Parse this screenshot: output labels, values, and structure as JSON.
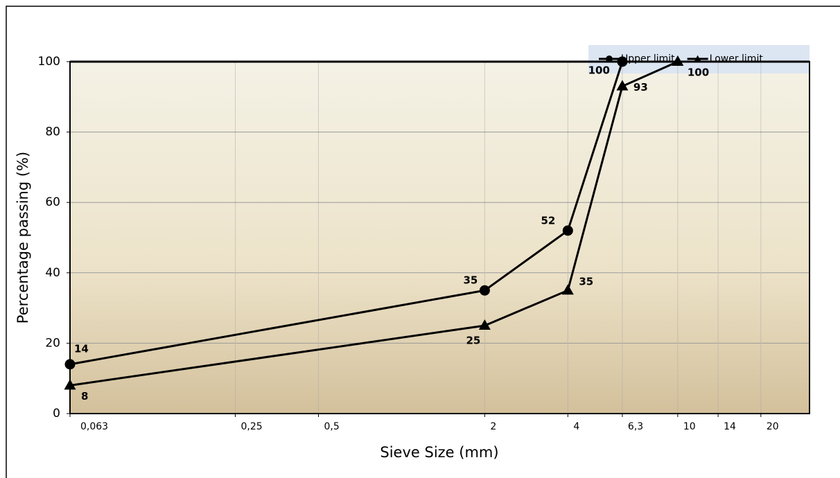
{
  "chart_data": {
    "type": "line",
    "xlabel": "Sieve Size (mm)",
    "ylabel": "Percentage passing (%)",
    "xscale": "log",
    "xlim": [
      0.063,
      30
    ],
    "ylim": [
      0,
      100
    ],
    "xticks": [
      {
        "value": 0.063,
        "label": "0,063"
      },
      {
        "value": 0.25,
        "label": "0,25"
      },
      {
        "value": 0.5,
        "label": "0,5"
      },
      2,
      4,
      {
        "value": 6.3,
        "label": "6,3"
      },
      10,
      14,
      20
    ],
    "yticks": [
      0,
      20,
      40,
      60,
      80,
      100
    ],
    "grid": true,
    "legend": "top-right",
    "series": [
      {
        "name": "Upper limit",
        "color": "#000000",
        "marker": "circle",
        "x": [
          0.063,
          2,
          4,
          6.3
        ],
        "values": [
          14,
          35,
          52,
          100
        ]
      },
      {
        "name": "Lower limit",
        "color": "#000000",
        "marker": "triangle",
        "x": [
          0.063,
          2,
          4,
          6.3,
          10
        ],
        "values": [
          8,
          25,
          35,
          93,
          100
        ]
      }
    ]
  }
}
